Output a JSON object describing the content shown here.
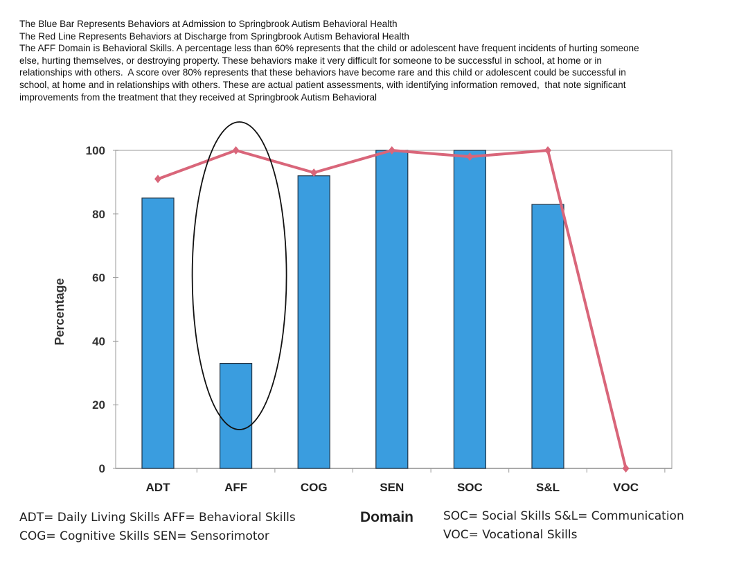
{
  "notes": [
    "The Blue Bar Represents Behaviors at Admission to Springbrook Autism Behavioral Health",
    "The Red Line Represents Behaviors at Discharge from Springbrook Autism Behavioral Health",
    "The AFF Domain is Behavioral Skills. A percentage less than 60% represents that the child or adolescent have frequent incidents of hurting someone else, hurting themselves, or destroying property. These behaviors make it very difficult for someone to be successful in school, at home or in relationships with others.  A score over 80% represents that these behaviors have become rare and this child or adolescent could be successful in school, at home and in relationships with others. These are actual patient assessments, with identifying information removed,  that note significant improvements from the treatment that they received at Springbrook Autism Behavioral"
  ],
  "chart_data": {
    "type": "bar",
    "categories": [
      "ADT",
      "AFF",
      "COG",
      "SEN",
      "SOC",
      "S&L",
      "VOC"
    ],
    "series": [
      {
        "name": "Admission",
        "type": "bar",
        "color": "#3a9ddf",
        "values": [
          85,
          33,
          92,
          100,
          100,
          83,
          0
        ]
      },
      {
        "name": "Discharge",
        "type": "line",
        "color": "#d9667a",
        "values": [
          91,
          100,
          93,
          100,
          98,
          100,
          0
        ]
      }
    ],
    "ylabel": "Percentage",
    "xlabel": "Domain",
    "ylim": [
      0,
      100
    ],
    "yticks": [
      "0",
      "20",
      "40",
      "60",
      "80",
      "100"
    ],
    "highlight": "AFF"
  },
  "legend": {
    "line1a": "ADT= Daily Living Skills  AFF= Behavioral Skills",
    "line2a": "COG= Cognitive Skills    SEN= Sensorimotor",
    "line1b": "SOC= Social Skills   S&L= Communication",
    "line2b": "VOC= Vocational Skills"
  }
}
